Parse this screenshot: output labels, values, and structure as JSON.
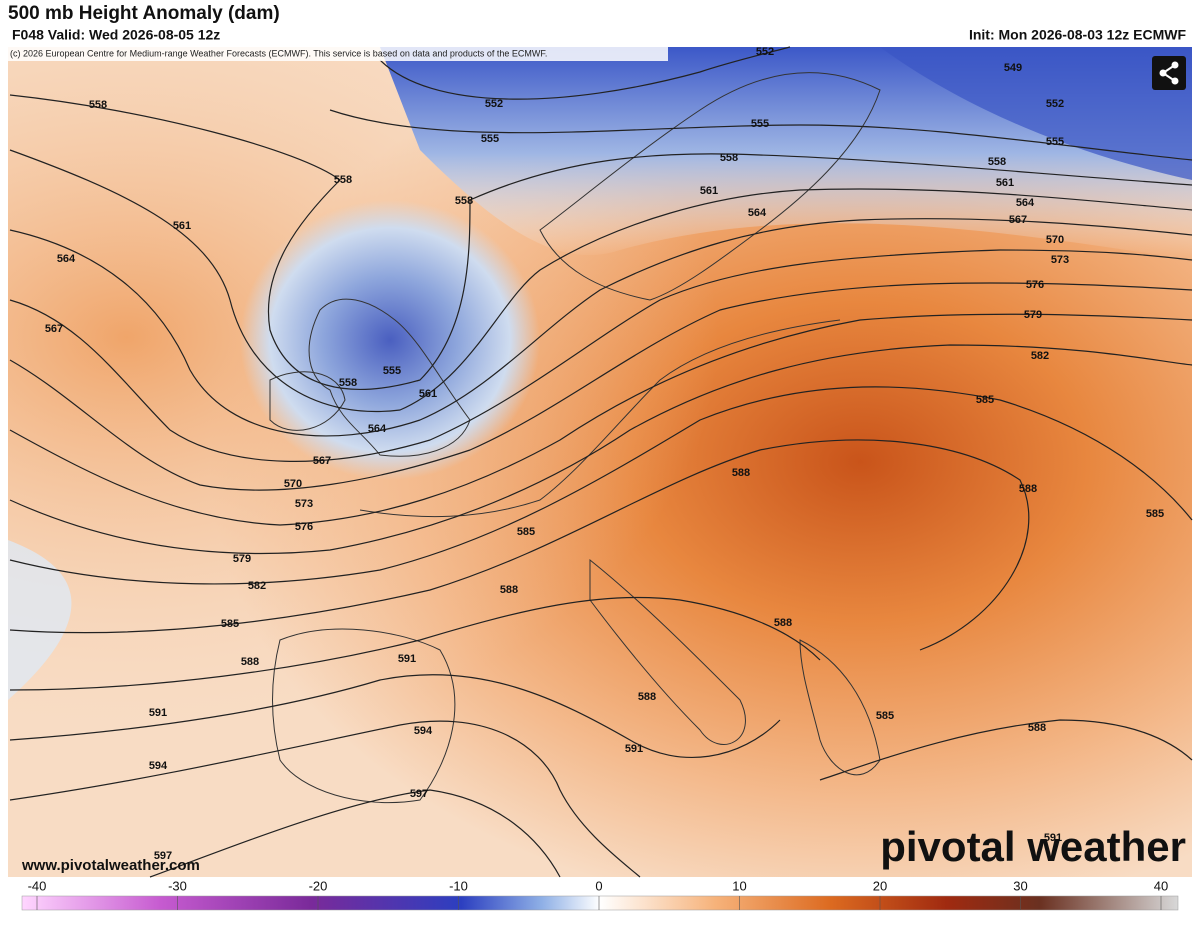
{
  "header": {
    "title": "500 mb Height Anomaly (dam)",
    "valid": "F048 Valid: Wed 2026-08-05 12z",
    "init": "Init: Mon 2026-08-03 12z ECMWF",
    "credit": "(c) 2026 European Centre for Medium-range Weather Forecasts (ECMWF). This service is based on data and products of the ECMWF."
  },
  "contour_labels": [
    552,
    549,
    552,
    555,
    558,
    561,
    564,
    567,
    570,
    573,
    576,
    579,
    582,
    585,
    588,
    585,
    558,
    561,
    564,
    567,
    558,
    558,
    552,
    555,
    555,
    558,
    561,
    564,
    555,
    558,
    561,
    564,
    567,
    570,
    573,
    576,
    579,
    582,
    585,
    588,
    591,
    594,
    597,
    597,
    585,
    588,
    591,
    594,
    588,
    588,
    588,
    591,
    585,
    588,
    591
  ],
  "footer": {
    "website": "www.pivotalweather.com",
    "logo": "pivotal weather"
  },
  "colorbar": {
    "lim": [
      -40,
      40
    ],
    "ticks": [
      -40,
      -30,
      -20,
      -10,
      0,
      10,
      20,
      30,
      40
    ]
  }
}
